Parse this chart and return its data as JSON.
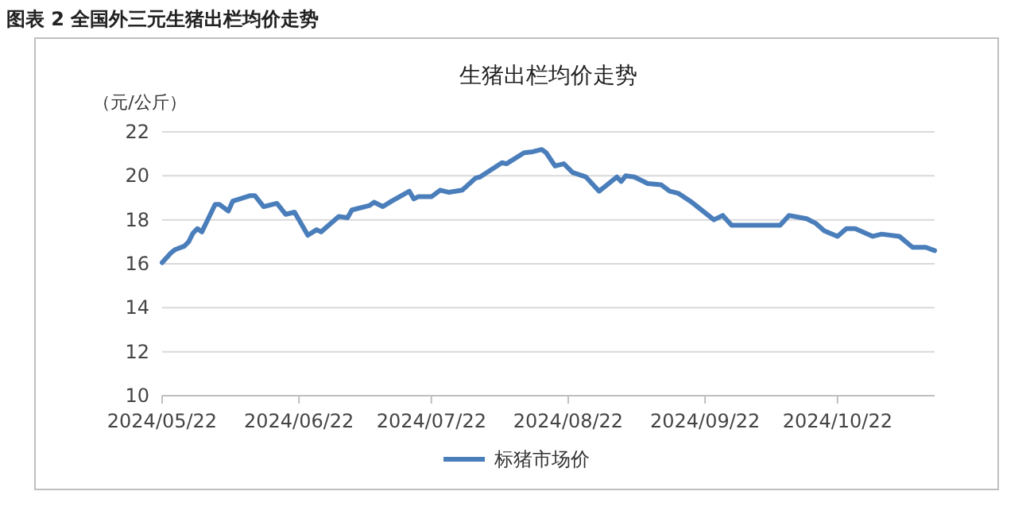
{
  "chart_data": {
    "type": "line",
    "title": "生猪出栏均价走势",
    "ylabel": "（元/公斤）",
    "annotations": [
      "图表 2  全国外三元生猪出栏均价走势"
    ],
    "xlim": [
      "2024-05-22",
      "2024-11-13"
    ],
    "xticks": [
      {
        "value": "2024-05-22",
        "label": "2024/05/22"
      },
      {
        "value": "2024-06-22",
        "label": "2024/06/22"
      },
      {
        "value": "2024-07-22",
        "label": "2024/07/22"
      },
      {
        "value": "2024-08-22",
        "label": "2024/08/22"
      },
      {
        "value": "2024-09-22",
        "label": "2024/09/22"
      },
      {
        "value": "2024-10-22",
        "label": "2024/10/22"
      }
    ],
    "ylim": [
      10,
      22
    ],
    "yticks": [
      10,
      12,
      14,
      16,
      18,
      20,
      22
    ],
    "grid": "y",
    "legend": "bottom",
    "marker": "none",
    "line_style": "solid",
    "x": [
      "2024-05-22",
      "2024-05-24",
      "2024-05-25",
      "2024-05-27",
      "2024-05-28",
      "2024-05-29",
      "2024-05-30",
      "2024-05-31",
      "2024-06-03",
      "2024-06-04",
      "2024-06-06",
      "2024-06-07",
      "2024-06-11",
      "2024-06-12",
      "2024-06-14",
      "2024-06-17",
      "2024-06-19",
      "2024-06-21",
      "2024-06-24",
      "2024-06-26",
      "2024-06-27",
      "2024-07-01",
      "2024-07-03",
      "2024-07-04",
      "2024-07-08",
      "2024-07-09",
      "2024-07-11",
      "2024-07-13",
      "2024-07-17",
      "2024-07-18",
      "2024-07-19",
      "2024-07-22",
      "2024-07-24",
      "2024-07-26",
      "2024-07-29",
      "2024-08-01",
      "2024-08-02",
      "2024-08-07",
      "2024-08-08",
      "2024-08-12",
      "2024-08-14",
      "2024-08-16",
      "2024-08-17",
      "2024-08-19",
      "2024-08-21",
      "2024-08-23",
      "2024-08-26",
      "2024-08-29",
      "2024-09-02",
      "2024-09-03",
      "2024-09-04",
      "2024-09-06",
      "2024-09-09",
      "2024-09-12",
      "2024-09-14",
      "2024-09-16",
      "2024-09-19",
      "2024-09-24",
      "2024-09-26",
      "2024-09-28",
      "2024-10-09",
      "2024-10-11",
      "2024-10-15",
      "2024-10-17",
      "2024-10-19",
      "2024-10-22",
      "2024-10-24",
      "2024-10-26",
      "2024-10-30",
      "2024-11-01",
      "2024-11-05",
      "2024-11-08",
      "2024-11-11",
      "2024-11-13"
    ],
    "series": [
      {
        "name": "标猪市场价",
        "color": "#4a7ebb",
        "values": [
          16.05,
          16.5,
          16.65,
          16.8,
          17.0,
          17.4,
          17.6,
          17.45,
          18.7,
          18.7,
          18.4,
          18.85,
          19.1,
          19.1,
          18.6,
          18.75,
          18.25,
          18.35,
          17.3,
          17.55,
          17.45,
          18.15,
          18.1,
          18.45,
          18.65,
          18.8,
          18.6,
          18.85,
          19.3,
          18.95,
          19.05,
          19.05,
          19.35,
          19.25,
          19.35,
          19.9,
          19.95,
          20.6,
          20.55,
          21.05,
          21.1,
          21.2,
          21.05,
          20.45,
          20.55,
          20.15,
          19.95,
          19.3,
          19.95,
          19.75,
          20.0,
          19.95,
          19.65,
          19.6,
          19.3,
          19.2,
          18.8,
          18.0,
          18.2,
          17.75,
          17.75,
          18.2,
          18.05,
          17.85,
          17.5,
          17.25,
          17.6,
          17.6,
          17.25,
          17.35,
          17.25,
          16.75,
          16.75,
          16.6
        ]
      }
    ]
  }
}
